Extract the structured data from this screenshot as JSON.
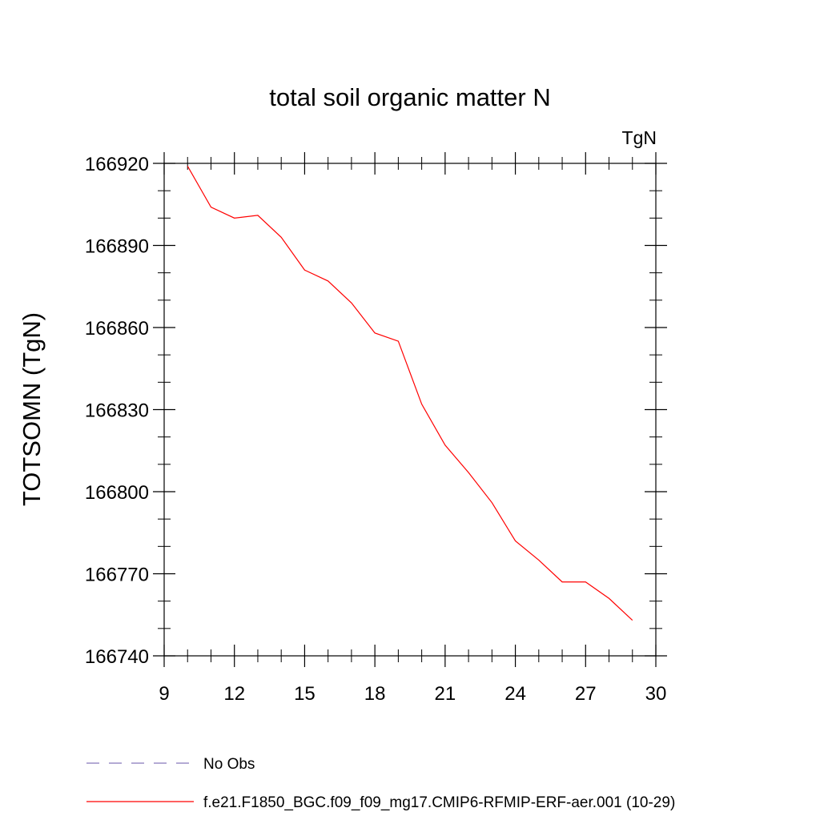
{
  "chart_data": {
    "type": "line",
    "title": "total soil organic matter N",
    "units_label": "TgN",
    "xlabel": "",
    "ylabel": "TOTSOMN  (TgN)",
    "xlim": [
      9,
      30
    ],
    "ylim": [
      166740,
      166920
    ],
    "xticks": [
      9,
      12,
      15,
      18,
      21,
      24,
      27,
      30
    ],
    "yticks": [
      166740,
      166770,
      166800,
      166830,
      166860,
      166890,
      166920
    ],
    "x_minor_step": 1,
    "y_minor_step": 10,
    "grid": false,
    "legend_position": "bottom-left",
    "series": [
      {
        "name": "No Obs",
        "color": "#8877bb",
        "dash": "dashed",
        "x": [],
        "values": []
      },
      {
        "name": "f.e21.F1850_BGC.f09_f09_mg17.CMIP6-RFMIP-ERF-aer.001 (10-29)",
        "color": "#ff0000",
        "dash": "solid",
        "x": [
          10,
          11,
          12,
          13,
          14,
          15,
          16,
          17,
          18,
          19,
          20,
          21,
          22,
          23,
          24,
          25,
          26,
          27,
          28,
          29
        ],
        "values": [
          166919,
          166904,
          166900,
          166901,
          166893,
          166881,
          166877,
          166869,
          166858,
          166855,
          166832,
          166817,
          166807,
          166796,
          166782,
          166775,
          166767,
          166767,
          166761,
          166753
        ]
      }
    ]
  }
}
